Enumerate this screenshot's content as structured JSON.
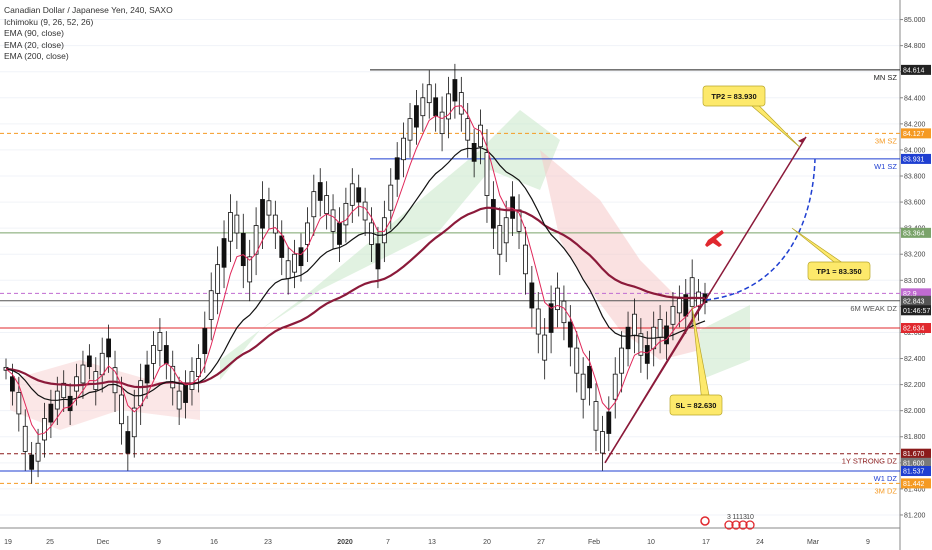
{
  "header": {
    "symbol_line": "Canadian Dollar / Japanese Yen, 240, SAXO",
    "indicators": [
      "Ichimoku (9, 26, 52, 26)",
      "EMA (90, close)",
      "EMA (20, close)",
      "EMA (200, close)"
    ]
  },
  "chart_data": {
    "type": "candlestick",
    "symbol": "CADJPY",
    "timeframe": "240",
    "source": "SAXO",
    "y_axis": {
      "range": [
        81.1,
        85.15
      ],
      "ticks": [
        81.2,
        81.4,
        81.6,
        81.8,
        82.0,
        82.2,
        82.4,
        82.6,
        82.8,
        83.0,
        83.2,
        83.4,
        83.6,
        83.8,
        84.0,
        84.2,
        84.4,
        84.6,
        84.8,
        85.0
      ],
      "tick_labels": [
        "81.200",
        "81.400",
        "81.600",
        "81.800",
        "82.000",
        "82.200",
        "82.400",
        "82.600",
        "82.800",
        "83.000",
        "83.200",
        "83.400",
        "83.600",
        "83.800",
        "84.000",
        "84.200",
        "84.400",
        "84.600",
        "84.800",
        "85.000"
      ]
    },
    "x_axis": {
      "tick_labels": [
        "19",
        "25",
        "Dec",
        "9",
        "16",
        "23",
        "2020",
        "7",
        "13",
        "20",
        "27",
        "Feb",
        "10",
        "17",
        "24",
        "Mar",
        "9"
      ],
      "bold_labels": [
        "2020"
      ]
    },
    "levels": [
      {
        "label": "MN SZ",
        "value": 84.614,
        "tag": "84.614",
        "color": "#222222",
        "style": "solid"
      },
      {
        "label": "3M SZ",
        "value": 84.127,
        "tag": "84.127",
        "color": "#f59a23",
        "style": "dashed"
      },
      {
        "label": "W1 SZ",
        "value": 83.931,
        "tag": "83.931",
        "color": "#1f3fd1",
        "style": "solid"
      },
      {
        "label": "",
        "value": 83.364,
        "tag": "83.364",
        "color": "#7aa36a",
        "style": "solid"
      },
      {
        "label": "",
        "value": 82.9,
        "tag": "82.9",
        "color": "#c06bd1",
        "style": "dashed"
      },
      {
        "label": "6M WEAK DZ",
        "value": 82.843,
        "tag": "82.843",
        "color": "#555555",
        "style": "solid"
      },
      {
        "label": "",
        "value": 82.77,
        "tag": "01:46:57",
        "color": "#222222",
        "style": "none"
      },
      {
        "label": "",
        "value": 82.634,
        "tag": "82.634",
        "color": "#e0282e",
        "style": "solid"
      },
      {
        "label": "1Y STRONG DZ",
        "value": 81.67,
        "tag": "81.670",
        "color": "#8b1a1a",
        "style": "dashed"
      },
      {
        "label": "",
        "value": 81.6,
        "tag": "81.600",
        "color": "#7a7a7a",
        "style": "none"
      },
      {
        "label": "W1 DZ",
        "value": 81.537,
        "tag": "81.537",
        "color": "#1f3fd1",
        "style": "solid"
      },
      {
        "label": "3M DZ",
        "value": 81.442,
        "tag": "81.442",
        "color": "#f59a23",
        "style": "dashed"
      }
    ],
    "callouts": [
      {
        "text": "TP2 = 83.930",
        "value": 83.93
      },
      {
        "text": "TP1 = 83.350",
        "value": 83.35
      },
      {
        "text": "SL = 82.630",
        "value": 82.63
      }
    ],
    "bottom_markers": [
      "3",
      "11",
      "13",
      "10"
    ],
    "candles_approx": [
      [
        82.3,
        82.34
      ],
      [
        82.1,
        82.3
      ],
      [
        81.9,
        82.2
      ],
      [
        81.6,
        81.95
      ],
      [
        81.5,
        81.7
      ],
      [
        81.55,
        81.8
      ],
      [
        81.7,
        82.0
      ],
      [
        81.85,
        82.1
      ],
      [
        81.95,
        82.2
      ],
      [
        82.05,
        82.25
      ],
      [
        81.95,
        82.15
      ],
      [
        82.1,
        82.3
      ],
      [
        82.15,
        82.4
      ],
      [
        82.3,
        82.45
      ],
      [
        82.1,
        82.35
      ],
      [
        82.2,
        82.5
      ],
      [
        82.35,
        82.6
      ],
      [
        82.05,
        82.4
      ],
      [
        81.8,
        82.2
      ],
      [
        81.6,
        81.9
      ],
      [
        81.7,
        82.1
      ],
      [
        81.95,
        82.3
      ],
      [
        82.15,
        82.4
      ],
      [
        82.3,
        82.55
      ],
      [
        82.4,
        82.65
      ],
      [
        82.3,
        82.55
      ],
      [
        82.1,
        82.4
      ],
      [
        81.95,
        82.2
      ],
      [
        82.0,
        82.25
      ],
      [
        82.1,
        82.35
      ],
      [
        82.2,
        82.45
      ],
      [
        82.35,
        82.7
      ],
      [
        82.6,
        83.0
      ],
      [
        82.8,
        83.2
      ],
      [
        83.0,
        83.4
      ],
      [
        83.2,
        83.6
      ],
      [
        83.3,
        83.55
      ],
      [
        83.0,
        83.45
      ],
      [
        82.9,
        83.25
      ],
      [
        83.1,
        83.5
      ],
      [
        83.3,
        83.7
      ],
      [
        83.45,
        83.65
      ],
      [
        83.3,
        83.55
      ],
      [
        83.1,
        83.4
      ],
      [
        82.95,
        83.2
      ],
      [
        83.0,
        83.25
      ],
      [
        83.05,
        83.3
      ],
      [
        83.2,
        83.5
      ],
      [
        83.4,
        83.75
      ],
      [
        83.55,
        83.8
      ],
      [
        83.45,
        83.7
      ],
      [
        83.3,
        83.6
      ],
      [
        83.2,
        83.5
      ],
      [
        83.35,
        83.65
      ],
      [
        83.5,
        83.8
      ],
      [
        83.55,
        83.75
      ],
      [
        83.4,
        83.65
      ],
      [
        83.2,
        83.5
      ],
      [
        83.0,
        83.35
      ],
      [
        83.2,
        83.55
      ],
      [
        83.45,
        83.8
      ],
      [
        83.7,
        84.0
      ],
      [
        83.85,
        84.15
      ],
      [
        84.0,
        84.3
      ],
      [
        84.1,
        84.4
      ],
      [
        84.2,
        84.45
      ],
      [
        84.3,
        84.55
      ],
      [
        84.2,
        84.45
      ],
      [
        84.05,
        84.35
      ],
      [
        84.15,
        84.5
      ],
      [
        84.3,
        84.6
      ],
      [
        84.2,
        84.5
      ],
      [
        84.0,
        84.3
      ],
      [
        83.85,
        84.1
      ],
      [
        83.95,
        84.25
      ],
      [
        83.5,
        84.1
      ],
      [
        83.3,
        83.7
      ],
      [
        83.1,
        83.5
      ],
      [
        83.2,
        83.55
      ],
      [
        83.4,
        83.7
      ],
      [
        83.3,
        83.6
      ],
      [
        82.95,
        83.35
      ],
      [
        82.7,
        83.05
      ],
      [
        82.5,
        82.85
      ],
      [
        82.3,
        82.65
      ],
      [
        82.5,
        82.9
      ],
      [
        82.7,
        83.0
      ],
      [
        82.6,
        82.9
      ],
      [
        82.4,
        82.75
      ],
      [
        82.2,
        82.55
      ],
      [
        82.0,
        82.35
      ],
      [
        82.1,
        82.4
      ],
      [
        81.75,
        82.15
      ],
      [
        81.6,
        81.9
      ],
      [
        81.75,
        82.05
      ],
      [
        82.0,
        82.35
      ],
      [
        82.2,
        82.55
      ],
      [
        82.4,
        82.7
      ],
      [
        82.5,
        82.8
      ],
      [
        82.35,
        82.65
      ],
      [
        82.3,
        82.55
      ],
      [
        82.4,
        82.7
      ],
      [
        82.5,
        82.75
      ],
      [
        82.45,
        82.7
      ],
      [
        82.6,
        82.85
      ],
      [
        82.7,
        82.9
      ],
      [
        82.65,
        82.95
      ],
      [
        82.7,
        83.1
      ],
      [
        82.75,
        82.95
      ],
      [
        82.8,
        82.92
      ]
    ]
  }
}
